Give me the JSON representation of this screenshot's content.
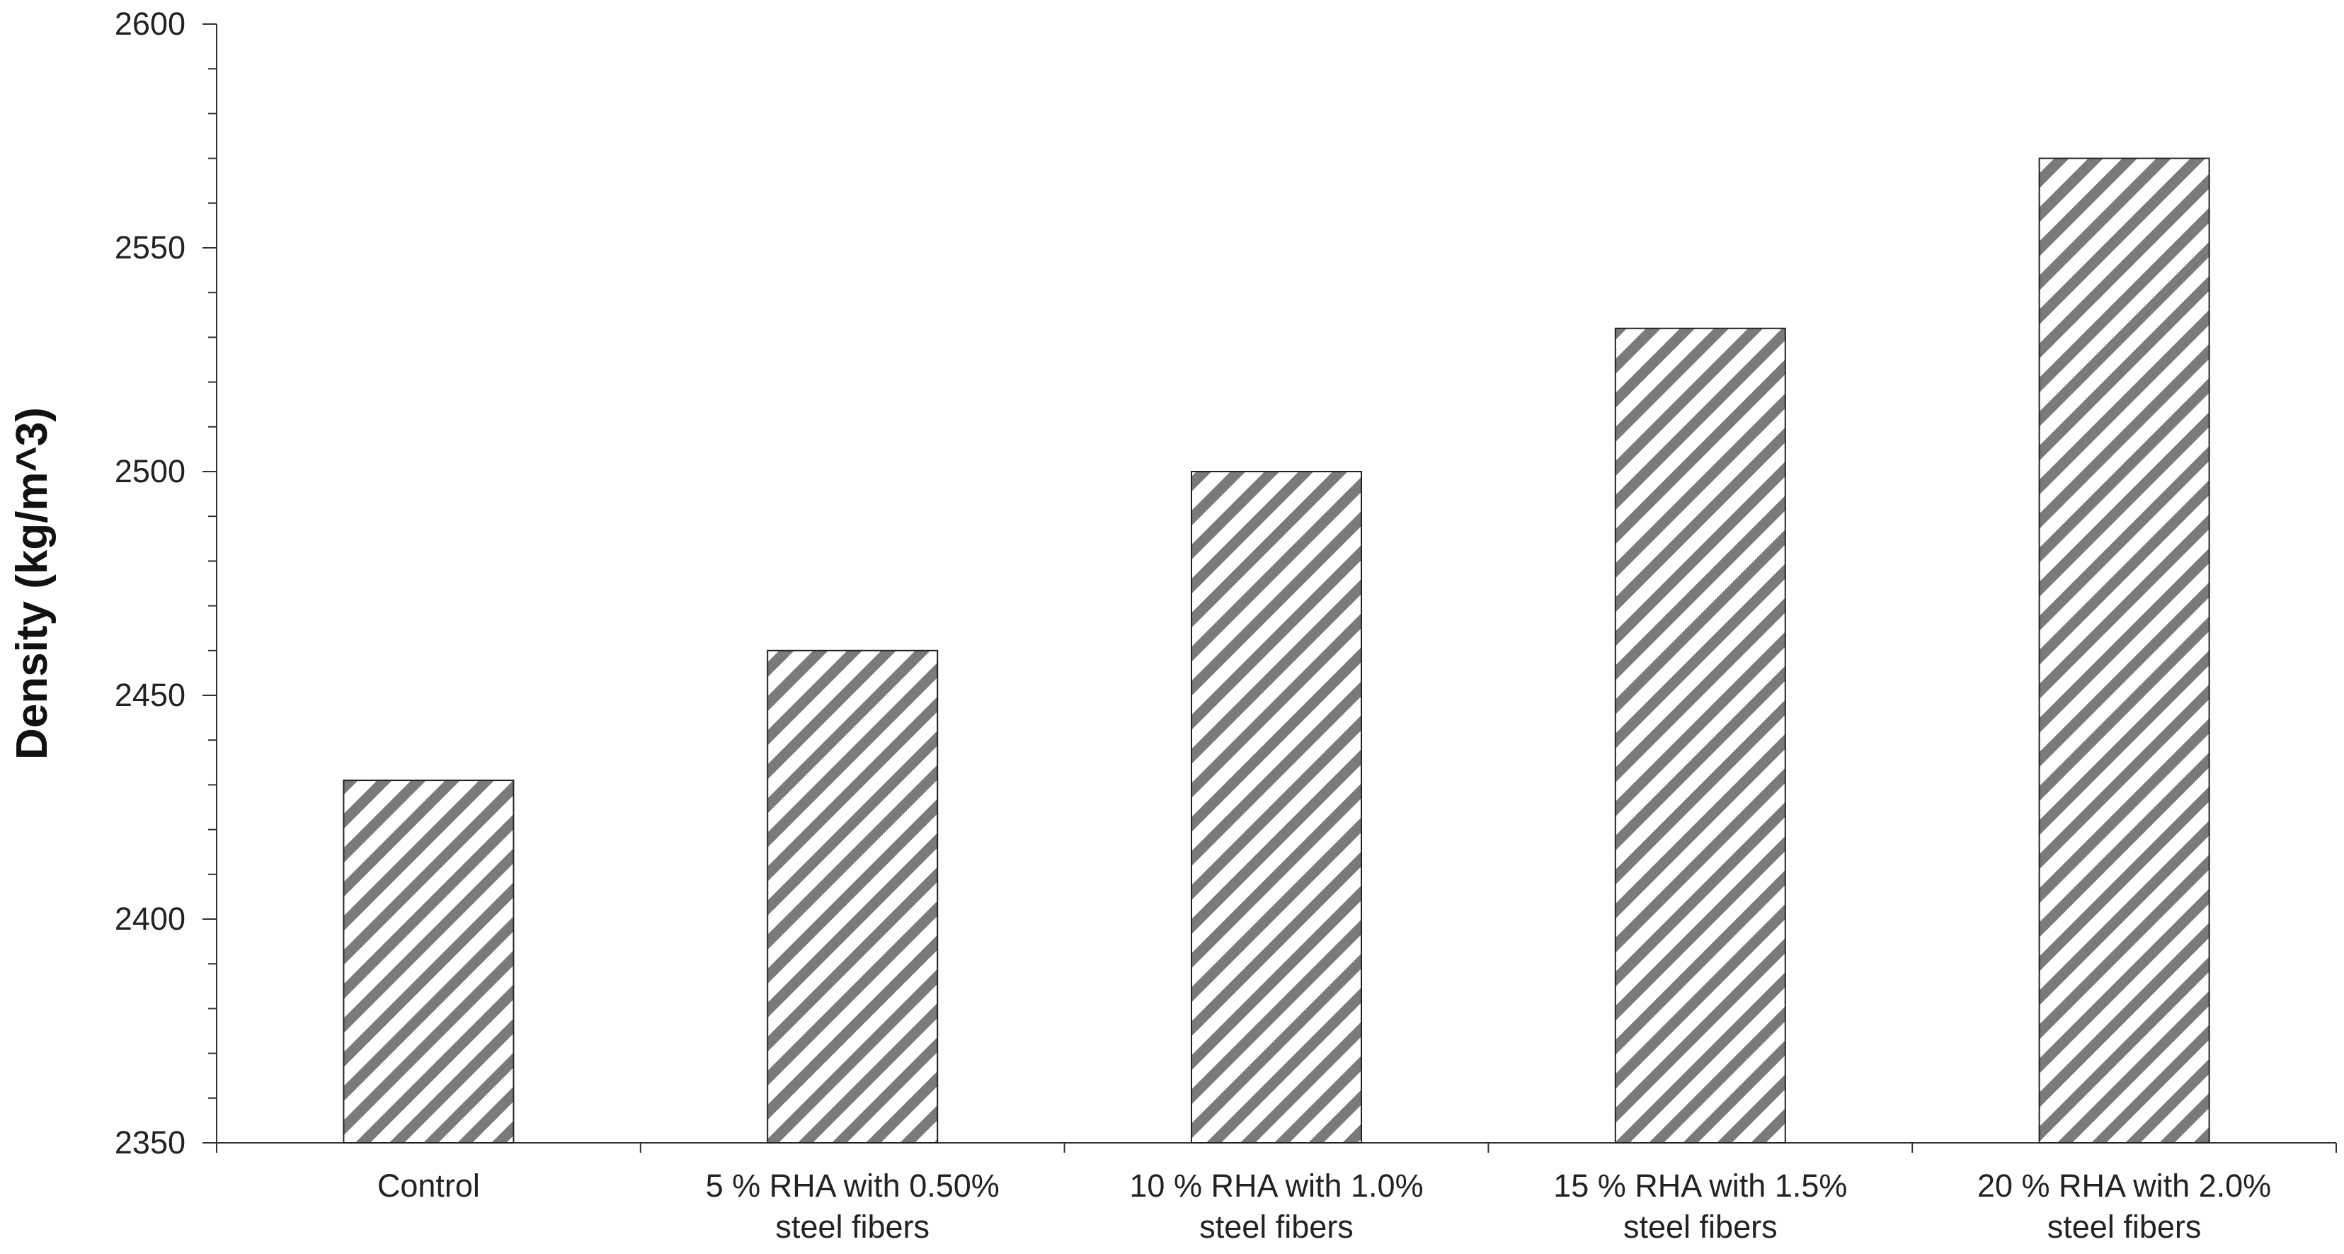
{
  "chart_data": {
    "type": "bar",
    "title": "",
    "xlabel": "",
    "ylabel": "Density (kg/m^3)",
    "ylim": [
      2350,
      2600
    ],
    "y_major_ticks": [
      2350,
      2400,
      2450,
      2500,
      2550,
      2600
    ],
    "y_minor_step": 10,
    "grid": false,
    "legend": "none",
    "bar_pattern": "diagonal-hatch",
    "bar_color": "#7a7a7a",
    "categories": [
      [
        "Control"
      ],
      [
        "5 % RHA with 0.50%",
        "steel fibers"
      ],
      [
        "10 % RHA with 1.0%",
        "steel fibers"
      ],
      [
        "15 % RHA with 1.5%",
        "steel fibers"
      ],
      [
        "20 % RHA with 2.0%",
        "steel fibers"
      ]
    ],
    "values": [
      2431,
      2460,
      2500,
      2532,
      2570
    ]
  }
}
